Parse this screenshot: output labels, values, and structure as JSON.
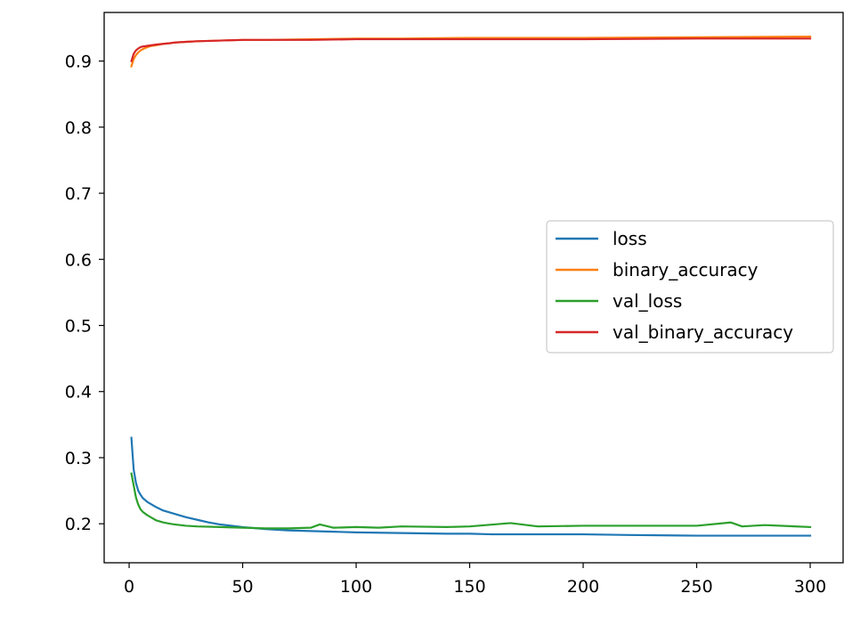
{
  "chart_data": {
    "type": "line",
    "title": "",
    "xlabel": "",
    "ylabel": "",
    "xlim": [
      -11,
      314.5
    ],
    "ylim": [
      0.141,
      0.9735
    ],
    "xticks": [
      0,
      50,
      100,
      150,
      200,
      250,
      300
    ],
    "yticks": [
      0.2,
      0.3,
      0.4,
      0.5,
      0.6,
      0.7,
      0.8,
      0.9
    ],
    "grid": false,
    "legend": {
      "placement": "center-right"
    },
    "series": [
      {
        "name": "loss",
        "color": "#1f77b4",
        "x": [
          1,
          2,
          3,
          4,
          5,
          6,
          8,
          10,
          12,
          15,
          18,
          20,
          25,
          30,
          35,
          40,
          50,
          60,
          70,
          80,
          90,
          100,
          120,
          140,
          150,
          160,
          180,
          200,
          220,
          250,
          270,
          300
        ],
        "y": [
          0.33,
          0.282,
          0.262,
          0.25,
          0.244,
          0.239,
          0.233,
          0.229,
          0.225,
          0.22,
          0.217,
          0.215,
          0.21,
          0.206,
          0.202,
          0.199,
          0.195,
          0.192,
          0.19,
          0.189,
          0.188,
          0.187,
          0.186,
          0.185,
          0.185,
          0.184,
          0.184,
          0.184,
          0.183,
          0.182,
          0.182,
          0.182
        ]
      },
      {
        "name": "binary_accuracy",
        "color": "#ff7f0e",
        "x": [
          1,
          2,
          3,
          4,
          5,
          6,
          8,
          10,
          12,
          15,
          18,
          20,
          25,
          30,
          40,
          50,
          60,
          80,
          100,
          120,
          150,
          200,
          250,
          300
        ],
        "y": [
          0.892,
          0.903,
          0.909,
          0.913,
          0.916,
          0.918,
          0.921,
          0.923,
          0.924,
          0.926,
          0.927,
          0.928,
          0.929,
          0.93,
          0.931,
          0.932,
          0.932,
          0.933,
          0.934,
          0.934,
          0.935,
          0.935,
          0.936,
          0.937
        ]
      },
      {
        "name": "val_loss",
        "color": "#2ca02c",
        "x": [
          1,
          2,
          3,
          4,
          5,
          6,
          8,
          10,
          12,
          15,
          18,
          20,
          25,
          30,
          40,
          50,
          60,
          70,
          80,
          84,
          90,
          100,
          110,
          120,
          140,
          150,
          168,
          180,
          200,
          220,
          250,
          265,
          270,
          280,
          300
        ],
        "y": [
          0.276,
          0.258,
          0.24,
          0.229,
          0.222,
          0.218,
          0.213,
          0.209,
          0.205,
          0.202,
          0.2,
          0.199,
          0.197,
          0.196,
          0.195,
          0.194,
          0.193,
          0.193,
          0.194,
          0.199,
          0.194,
          0.195,
          0.194,
          0.196,
          0.195,
          0.196,
          0.201,
          0.196,
          0.197,
          0.197,
          0.197,
          0.202,
          0.196,
          0.198,
          0.195
        ]
      },
      {
        "name": "val_binary_accuracy",
        "color": "#d62728",
        "x": [
          1,
          2,
          3,
          4,
          5,
          6,
          8,
          10,
          12,
          15,
          18,
          20,
          25,
          30,
          40,
          50,
          60,
          80,
          100,
          120,
          150,
          200,
          250,
          300
        ],
        "y": [
          0.9,
          0.911,
          0.916,
          0.919,
          0.921,
          0.922,
          0.923,
          0.924,
          0.925,
          0.926,
          0.927,
          0.928,
          0.929,
          0.93,
          0.931,
          0.932,
          0.932,
          0.932,
          0.933,
          0.933,
          0.933,
          0.933,
          0.934,
          0.934
        ]
      }
    ]
  }
}
